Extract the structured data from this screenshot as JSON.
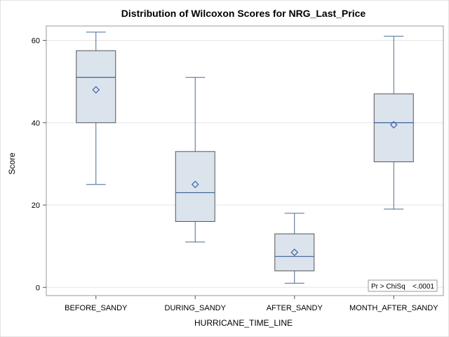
{
  "chart_data": {
    "type": "box",
    "title": "Distribution of Wilcoxon Scores for NRG_Last_Price",
    "xlabel": "HURRICANE_TIME_LINE",
    "ylabel": "Score",
    "ylim": [
      -2,
      63.5
    ],
    "yticks": [
      0,
      20,
      40,
      60
    ],
    "grid": true,
    "categories": [
      "BEFORE_SANDY",
      "DURING_SANDY",
      "AFTER_SANDY",
      "MONTH_AFTER_SANDY"
    ],
    "boxes": [
      {
        "category": "BEFORE_SANDY",
        "min": 25,
        "q1": 40,
        "median": 51,
        "q3": 57.5,
        "max": 62,
        "mean": 48
      },
      {
        "category": "DURING_SANDY",
        "min": 11,
        "q1": 16,
        "median": 23,
        "q3": 33,
        "max": 51,
        "mean": 25
      },
      {
        "category": "AFTER_SANDY",
        "min": 1,
        "q1": 4,
        "median": 7.5,
        "q3": 13,
        "max": 18,
        "mean": 8.5
      },
      {
        "category": "MONTH_AFTER_SANDY",
        "min": 19,
        "q1": 30.5,
        "median": 40,
        "q3": 47,
        "max": 61,
        "mean": 39.5
      }
    ],
    "inset": {
      "label": "Pr > ChiSq",
      "value": "<.0001"
    },
    "colors": {
      "box_fill": "#dbe3ed",
      "box_stroke": "#4a6b94",
      "median": "#3a5f97",
      "mean_marker": "#3a64a8",
      "grid": "#e6e6e6",
      "frame": "#9a9a9a"
    }
  }
}
